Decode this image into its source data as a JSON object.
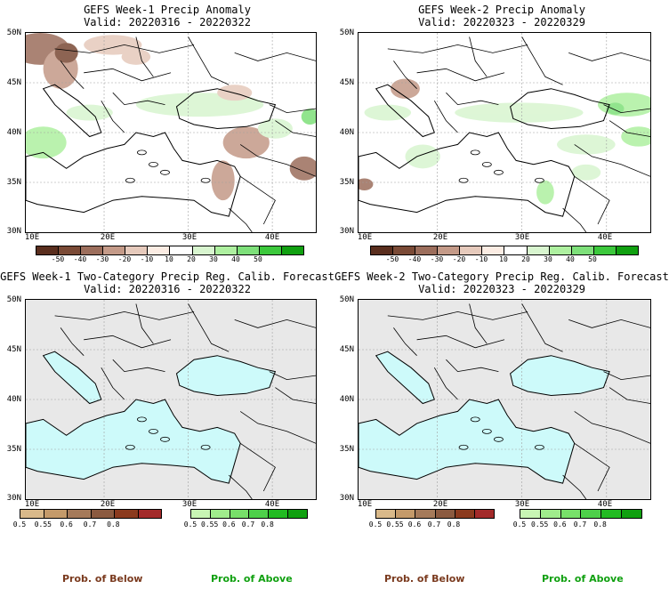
{
  "panels": [
    {
      "id": "w1-anom",
      "title1": "GEFS Week-1 Precip Anomaly",
      "title2": "Valid: 20220316 - 20220322",
      "kind": "anomaly"
    },
    {
      "id": "w2-anom",
      "title1": "GEFS Week-2 Precip Anomaly",
      "title2": "Valid: 20220323 - 20220329",
      "kind": "anomaly"
    },
    {
      "id": "w1-prob",
      "title1": "GEFS Week-1 Two-Category Precip Reg. Calib. Forecast",
      "title2": "Valid: 20220316 - 20220322",
      "kind": "prob"
    },
    {
      "id": "w2-prob",
      "title1": "GEFS Week-2 Two-Category Precip Reg. Calib. Forecast",
      "title2": "Valid: 20220323 - 20220329",
      "kind": "prob"
    }
  ],
  "lat_labels": [
    "50N",
    "45N",
    "40N",
    "35N",
    "30N"
  ],
  "lon_labels": [
    "10E",
    "20E",
    "30E",
    "40E"
  ],
  "anomaly_colorbar": {
    "ticks": [
      "-50",
      "-40",
      "-30",
      "-20",
      "-10",
      "10",
      "20",
      "30",
      "40",
      "50"
    ],
    "colors": [
      "#5a2e1e",
      "#7a4a36",
      "#9c6e5c",
      "#c49a88",
      "#e6cabc",
      "#fbece3",
      "#ffffff",
      "#d8f5cf",
      "#aef0a0",
      "#7ee07a",
      "#3cc83c",
      "#10a010"
    ]
  },
  "below_colorbar": {
    "ticks": [
      "0.5",
      "0.55",
      "0.6",
      "0.7",
      "0.8"
    ],
    "colors": [
      "#d9b98a",
      "#c49a6a",
      "#a57a5a",
      "#8b5a40",
      "#8b3a1e",
      "#a32a2a"
    ]
  },
  "above_colorbar": {
    "ticks": [
      "0.5",
      "0.55",
      "0.6",
      "0.7",
      "0.8"
    ],
    "colors": [
      "#c8f5b4",
      "#a0ec8c",
      "#78e06a",
      "#4ed04a",
      "#22bb22",
      "#10a010"
    ]
  },
  "footer": {
    "below_label": "Prob. of Below",
    "above_label": "Prob. of Above",
    "below_color": "#7a3a1e",
    "above_color": "#10a010"
  },
  "map_colors": {
    "land": "#ffffff",
    "sea_prob": "#cdfafa",
    "land_prob": "#e8e8e8",
    "grid": "#a0a0a0"
  }
}
